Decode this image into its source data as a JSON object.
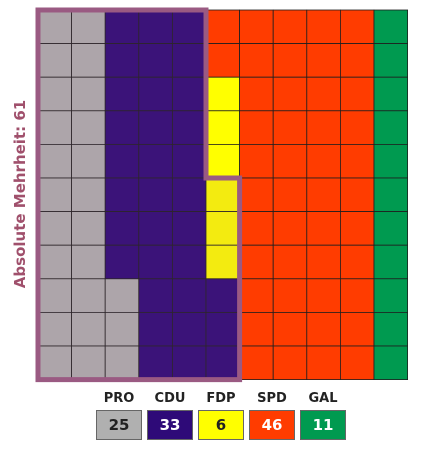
{
  "chart_data": {
    "type": "waffle",
    "title": "",
    "grid_columns": 11,
    "grid_rows": 11,
    "majority_label": "Absolute Mehrheit: 61",
    "majority_seats": 61,
    "series": [
      {
        "name": "PRO",
        "value": 25,
        "color": "#b0b0b0",
        "text_color": "#222222"
      },
      {
        "name": "CDU",
        "value": 33,
        "color": "#2e0a78",
        "text_color": "#ffffff"
      },
      {
        "name": "FDP",
        "value": 6,
        "color": "#ffff00",
        "text_color": "#222222"
      },
      {
        "name": "SPD",
        "value": 46,
        "color": "#ff3c00",
        "text_color": "#ffffff"
      },
      {
        "name": "GAL",
        "value": 11,
        "color": "#009a50",
        "text_color": "#ffffff"
      }
    ],
    "majority_outline_color": "#9a5a82"
  }
}
